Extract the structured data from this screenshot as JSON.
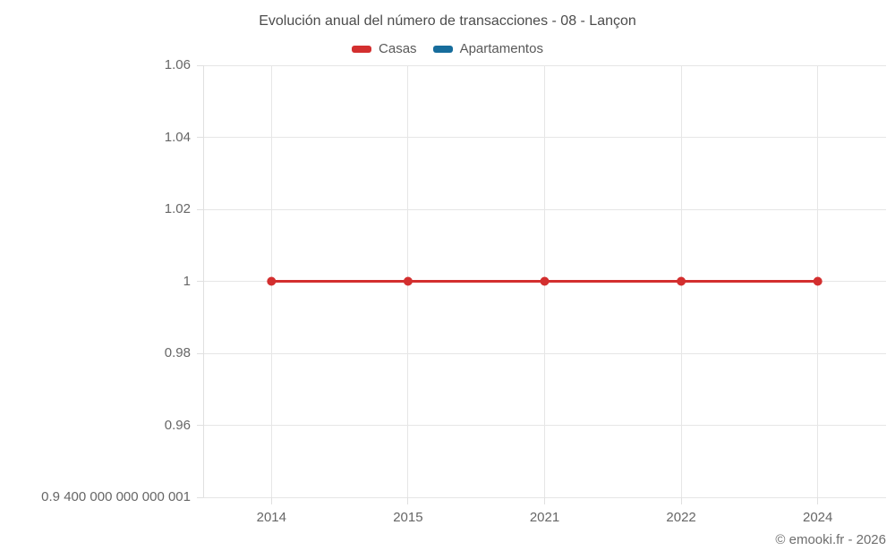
{
  "header": {
    "title": "Evolución anual del número de transacciones - 08 - Lançon"
  },
  "legend": {
    "items": [
      {
        "label": "Casas",
        "color": "#d32f2f"
      },
      {
        "label": "Apartamentos",
        "color": "#176d9c"
      }
    ]
  },
  "footer": {
    "copyright": "© emooki.fr - 2026"
  },
  "chart_data": {
    "type": "line",
    "title": "Evolución anual del número de transacciones - 08 - Lançon",
    "categories": [
      "2014",
      "2015",
      "2021",
      "2022",
      "2024"
    ],
    "series": [
      {
        "name": "Casas",
        "color": "#d32f2f",
        "values": [
          1,
          1,
          1,
          1,
          1
        ]
      },
      {
        "name": "Apartamentos",
        "color": "#176d9c",
        "values": []
      }
    ],
    "ylim": [
      0.94,
      1.06
    ],
    "y_ticks": [
      {
        "value": 1.06,
        "label": "1.06"
      },
      {
        "value": 1.04,
        "label": "1.04"
      },
      {
        "value": 1.02,
        "label": "1.02"
      },
      {
        "value": 1,
        "label": "1"
      },
      {
        "value": 0.98,
        "label": "0.98"
      },
      {
        "value": 0.96,
        "label": "0.96"
      },
      {
        "value": 0.94,
        "label": "0.9 400 000 000 000 001"
      }
    ],
    "xlabel": "",
    "ylabel": "",
    "grid": true,
    "legend_position": "top"
  }
}
